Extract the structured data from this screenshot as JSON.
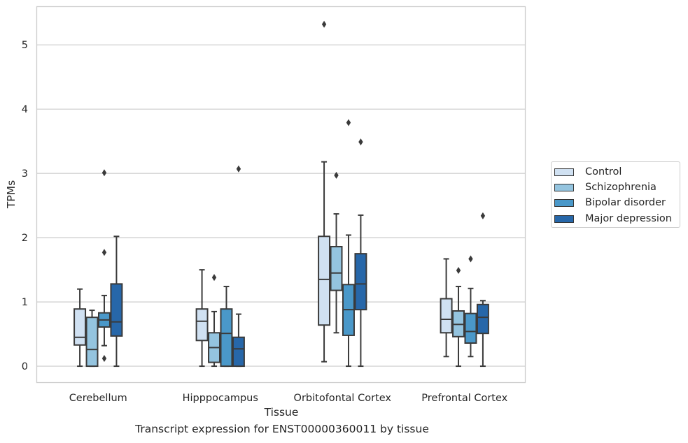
{
  "chart_data": {
    "type": "box",
    "xlabel": "Tissue",
    "ylabel": "TPMs",
    "caption": "Transcript expression for ENST00000360011 by tissue",
    "ylim": [
      -0.26,
      5.6
    ],
    "yticks": [
      0,
      1,
      2,
      3,
      4,
      5
    ],
    "grid": "horizontal",
    "legend_position": "right",
    "categories": [
      "Cerebellum",
      "Hipppocampus",
      "Orbitofontal Cortex",
      "Prefrontal Cortex"
    ],
    "series": [
      {
        "name": "Control",
        "color": "#d0e1f2",
        "boxes": [
          {
            "q1": 0.33,
            "median": 0.45,
            "q3": 0.89,
            "whislo": 0.0,
            "whishi": 1.2,
            "fliers": []
          },
          {
            "q1": 0.4,
            "median": 0.7,
            "q3": 0.89,
            "whislo": 0.0,
            "whishi": 1.5,
            "fliers": []
          },
          {
            "q1": 0.64,
            "median": 1.35,
            "q3": 2.02,
            "whislo": 0.07,
            "whishi": 3.18,
            "fliers": [
              5.32
            ]
          },
          {
            "q1": 0.52,
            "median": 0.73,
            "q3": 1.05,
            "whislo": 0.15,
            "whishi": 1.67,
            "fliers": []
          }
        ]
      },
      {
        "name": "Schizophrenia",
        "color": "#94c4df",
        "boxes": [
          {
            "q1": 0.0,
            "median": 0.26,
            "q3": 0.76,
            "whislo": 0.0,
            "whishi": 0.87,
            "fliers": []
          },
          {
            "q1": 0.06,
            "median": 0.29,
            "q3": 0.52,
            "whislo": 0.0,
            "whishi": 0.85,
            "fliers": [
              1.38
            ]
          },
          {
            "q1": 1.18,
            "median": 1.45,
            "q3": 1.86,
            "whislo": 0.52,
            "whishi": 2.37,
            "fliers": [
              2.97
            ]
          },
          {
            "q1": 0.46,
            "median": 0.65,
            "q3": 0.86,
            "whislo": 0.0,
            "whishi": 1.24,
            "fliers": [
              1.49
            ]
          }
        ]
      },
      {
        "name": "Bipolar disorder",
        "color": "#4a98c9",
        "boxes": [
          {
            "q1": 0.61,
            "median": 0.72,
            "q3": 0.83,
            "whislo": 0.32,
            "whishi": 1.1,
            "fliers": [
              3.01,
              1.77,
              0.12
            ]
          },
          {
            "q1": 0.0,
            "median": 0.51,
            "q3": 0.89,
            "whislo": 0.0,
            "whishi": 1.24,
            "fliers": []
          },
          {
            "q1": 0.48,
            "median": 0.88,
            "q3": 1.27,
            "whislo": 0.0,
            "whishi": 2.04,
            "fliers": [
              3.79
            ]
          },
          {
            "q1": 0.36,
            "median": 0.54,
            "q3": 0.82,
            "whislo": 0.15,
            "whishi": 1.21,
            "fliers": [
              1.67
            ]
          }
        ]
      },
      {
        "name": "Major depression",
        "color": "#2767a9",
        "boxes": [
          {
            "q1": 0.47,
            "median": 0.69,
            "q3": 1.28,
            "whislo": 0.0,
            "whishi": 2.02,
            "fliers": []
          },
          {
            "q1": 0.0,
            "median": 0.27,
            "q3": 0.45,
            "whislo": 0.0,
            "whishi": 0.81,
            "fliers": [
              3.07
            ]
          },
          {
            "q1": 0.88,
            "median": 1.28,
            "q3": 1.75,
            "whislo": 0.0,
            "whishi": 2.35,
            "fliers": [
              3.49
            ]
          },
          {
            "q1": 0.51,
            "median": 0.76,
            "q3": 0.96,
            "whislo": 0.0,
            "whishi": 1.02,
            "fliers": [
              2.34
            ]
          }
        ]
      }
    ]
  }
}
